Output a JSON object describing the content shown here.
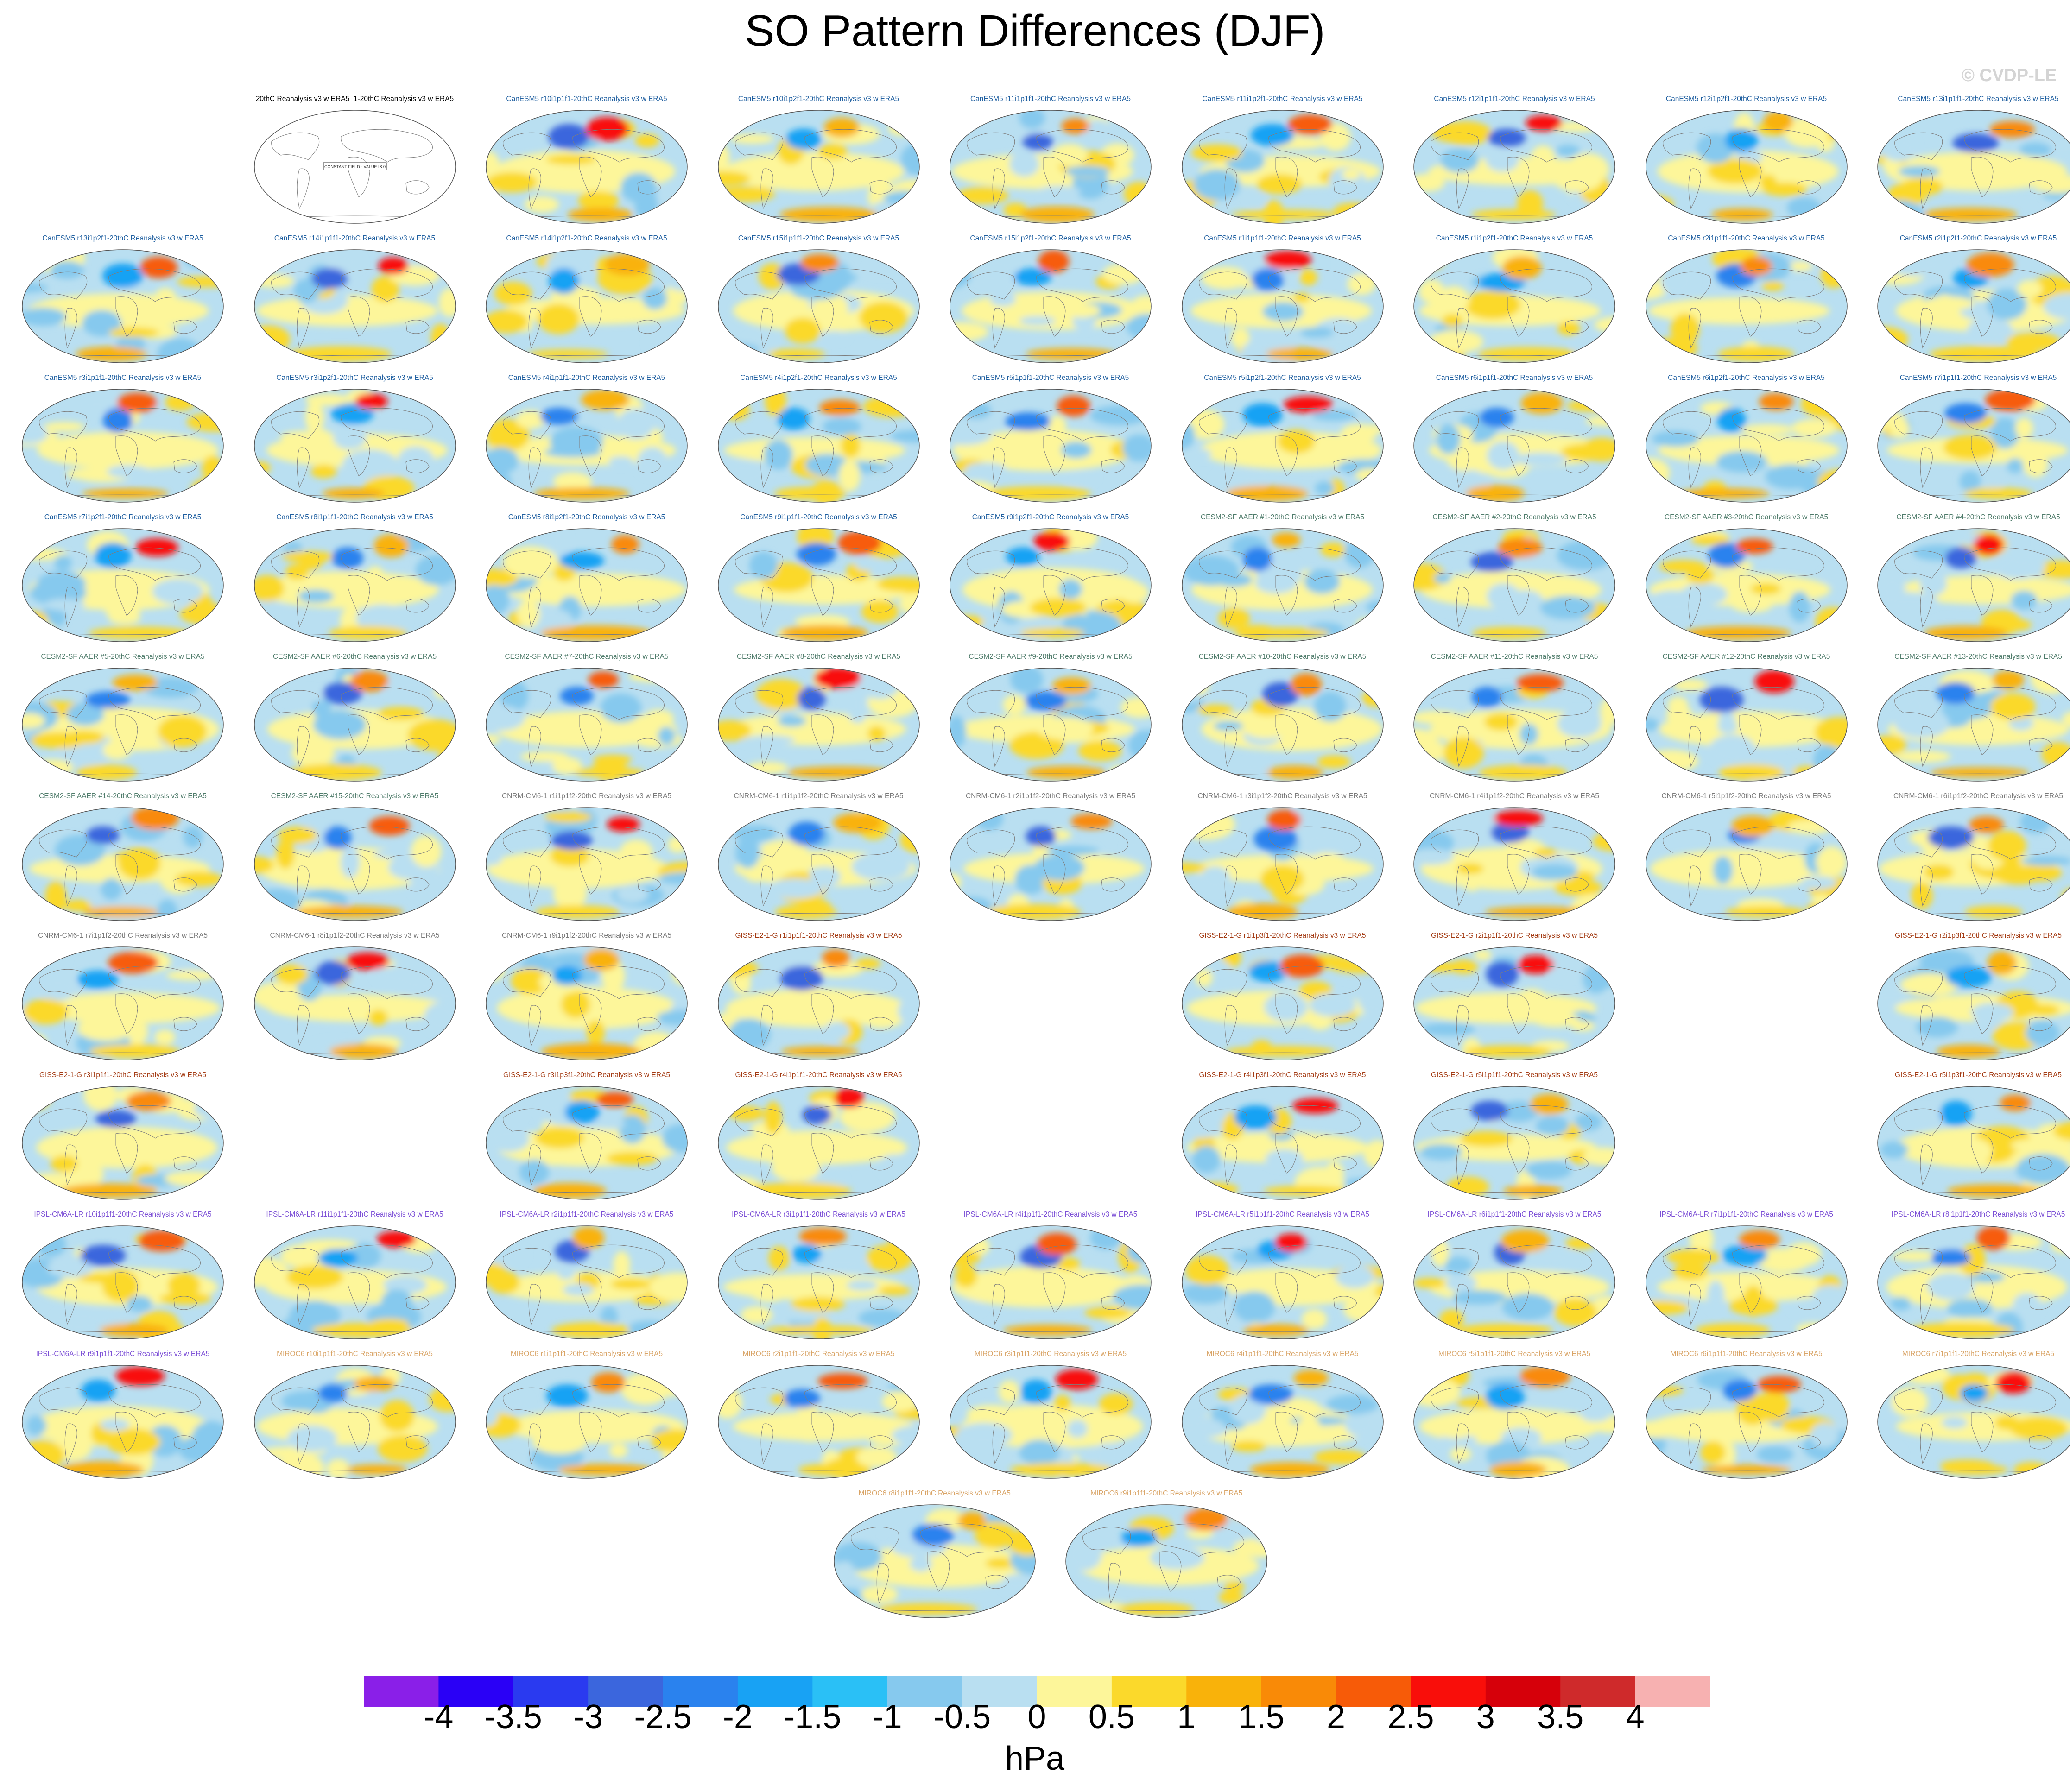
{
  "title": "SO Pattern Differences (DJF)",
  "watermark": "© CVDP-LE",
  "colorbar": {
    "units": "hPa",
    "labels": [
      "-4",
      "-3.5",
      "-3",
      "-2.5",
      "-2",
      "-1.5",
      "-1",
      "-0.5",
      "0",
      "0.5",
      "1",
      "1.5",
      "2",
      "2.5",
      "3",
      "3.5",
      "4"
    ],
    "colors": [
      "#8a1fe8",
      "#2a00f6",
      "#2a3af0",
      "#3b66dd",
      "#2a82ee",
      "#18a2f4",
      "#2ac0f6",
      "#86c9ee",
      "#b9dff1",
      "#fdf69a",
      "#fbd92b",
      "#f9b20a",
      "#f98a07",
      "#f75b08",
      "#f90e0a",
      "#d6000a",
      "#cf2a2b",
      "#f7b1b1"
    ]
  },
  "chart_data": {
    "type": "heatmap",
    "title": "SO Pattern Differences (DJF)",
    "units": "hPa",
    "color_levels": [
      -4,
      -3.5,
      -3,
      -2.5,
      -2,
      -1.5,
      -1,
      -0.5,
      0,
      0.5,
      1,
      1.5,
      2,
      2.5,
      3,
      3.5,
      4
    ],
    "group_colors": {
      "obs": "#000000",
      "CanESM5": "#1f5fa0",
      "CESM2-SF AAER": "#4e7b6a",
      "CNRM-CM6-1": "#7a7a7a",
      "GISS-E2-1-G": "#a33a12",
      "IPSL-CM6A-LR": "#7c4fd6",
      "MIROC6": "#d9a466"
    },
    "panels": [
      {
        "row": 0,
        "col": 1,
        "group": "obs",
        "label": "20thC Reanalysis v3 w ERA5_1-20thC Reanalysis v3 w ERA5",
        "note": "CONSTANT FIELD - VALUE IS 0"
      },
      {
        "row": 0,
        "col": 2,
        "group": "CanESM5",
        "label": "CanESM5 r10i1p1f1-20thC Reanalysis v3 w ERA5"
      },
      {
        "row": 0,
        "col": 3,
        "group": "CanESM5",
        "label": "CanESM5 r10i1p2f1-20thC Reanalysis v3 w ERA5"
      },
      {
        "row": 0,
        "col": 4,
        "group": "CanESM5",
        "label": "CanESM5 r11i1p1f1-20thC Reanalysis v3 w ERA5"
      },
      {
        "row": 0,
        "col": 5,
        "group": "CanESM5",
        "label": "CanESM5 r11i1p2f1-20thC Reanalysis v3 w ERA5"
      },
      {
        "row": 0,
        "col": 6,
        "group": "CanESM5",
        "label": "CanESM5 r12i1p1f1-20thC Reanalysis v3 w ERA5"
      },
      {
        "row": 0,
        "col": 7,
        "group": "CanESM5",
        "label": "CanESM5 r12i1p2f1-20thC Reanalysis v3 w ERA5"
      },
      {
        "row": 0,
        "col": 8,
        "group": "CanESM5",
        "label": "CanESM5 r13i1p1f1-20thC Reanalysis v3 w ERA5"
      },
      {
        "row": 1,
        "col": 0,
        "group": "CanESM5",
        "label": "CanESM5 r13i1p2f1-20thC Reanalysis v3 w ERA5"
      },
      {
        "row": 1,
        "col": 1,
        "group": "CanESM5",
        "label": "CanESM5 r14i1p1f1-20thC Reanalysis v3 w ERA5"
      },
      {
        "row": 1,
        "col": 2,
        "group": "CanESM5",
        "label": "CanESM5 r14i1p2f1-20thC Reanalysis v3 w ERA5"
      },
      {
        "row": 1,
        "col": 3,
        "group": "CanESM5",
        "label": "CanESM5 r15i1p1f1-20thC Reanalysis v3 w ERA5"
      },
      {
        "row": 1,
        "col": 4,
        "group": "CanESM5",
        "label": "CanESM5 r15i1p2f1-20thC Reanalysis v3 w ERA5"
      },
      {
        "row": 1,
        "col": 5,
        "group": "CanESM5",
        "label": "CanESM5 r1i1p1f1-20thC Reanalysis v3 w ERA5"
      },
      {
        "row": 1,
        "col": 6,
        "group": "CanESM5",
        "label": "CanESM5 r1i1p2f1-20thC Reanalysis v3 w ERA5"
      },
      {
        "row": 1,
        "col": 7,
        "group": "CanESM5",
        "label": "CanESM5 r2i1p1f1-20thC Reanalysis v3 w ERA5"
      },
      {
        "row": 1,
        "col": 8,
        "group": "CanESM5",
        "label": "CanESM5 r2i1p2f1-20thC Reanalysis v3 w ERA5"
      },
      {
        "row": 2,
        "col": 0,
        "group": "CanESM5",
        "label": "CanESM5 r3i1p1f1-20thC Reanalysis v3 w ERA5"
      },
      {
        "row": 2,
        "col": 1,
        "group": "CanESM5",
        "label": "CanESM5 r3i1p2f1-20thC Reanalysis v3 w ERA5"
      },
      {
        "row": 2,
        "col": 2,
        "group": "CanESM5",
        "label": "CanESM5 r4i1p1f1-20thC Reanalysis v3 w ERA5"
      },
      {
        "row": 2,
        "col": 3,
        "group": "CanESM5",
        "label": "CanESM5 r4i1p2f1-20thC Reanalysis v3 w ERA5"
      },
      {
        "row": 2,
        "col": 4,
        "group": "CanESM5",
        "label": "CanESM5 r5i1p1f1-20thC Reanalysis v3 w ERA5"
      },
      {
        "row": 2,
        "col": 5,
        "group": "CanESM5",
        "label": "CanESM5 r5i1p2f1-20thC Reanalysis v3 w ERA5"
      },
      {
        "row": 2,
        "col": 6,
        "group": "CanESM5",
        "label": "CanESM5 r6i1p1f1-20thC Reanalysis v3 w ERA5"
      },
      {
        "row": 2,
        "col": 7,
        "group": "CanESM5",
        "label": "CanESM5 r6i1p2f1-20thC Reanalysis v3 w ERA5"
      },
      {
        "row": 2,
        "col": 8,
        "group": "CanESM5",
        "label": "CanESM5 r7i1p1f1-20thC Reanalysis v3 w ERA5"
      },
      {
        "row": 3,
        "col": 0,
        "group": "CanESM5",
        "label": "CanESM5 r7i1p2f1-20thC Reanalysis v3 w ERA5"
      },
      {
        "row": 3,
        "col": 1,
        "group": "CanESM5",
        "label": "CanESM5 r8i1p1f1-20thC Reanalysis v3 w ERA5"
      },
      {
        "row": 3,
        "col": 2,
        "group": "CanESM5",
        "label": "CanESM5 r8i1p2f1-20thC Reanalysis v3 w ERA5"
      },
      {
        "row": 3,
        "col": 3,
        "group": "CanESM5",
        "label": "CanESM5 r9i1p1f1-20thC Reanalysis v3 w ERA5"
      },
      {
        "row": 3,
        "col": 4,
        "group": "CanESM5",
        "label": "CanESM5 r9i1p2f1-20thC Reanalysis v3 w ERA5"
      },
      {
        "row": 3,
        "col": 5,
        "group": "CESM2-SF AAER",
        "label": "CESM2-SF AAER #1-20thC Reanalysis v3 w ERA5"
      },
      {
        "row": 3,
        "col": 6,
        "group": "CESM2-SF AAER",
        "label": "CESM2-SF AAER #2-20thC Reanalysis v3 w ERA5"
      },
      {
        "row": 3,
        "col": 7,
        "group": "CESM2-SF AAER",
        "label": "CESM2-SF AAER #3-20thC Reanalysis v3 w ERA5"
      },
      {
        "row": 3,
        "col": 8,
        "group": "CESM2-SF AAER",
        "label": "CESM2-SF AAER #4-20thC Reanalysis v3 w ERA5"
      },
      {
        "row": 4,
        "col": 0,
        "group": "CESM2-SF AAER",
        "label": "CESM2-SF AAER #5-20thC Reanalysis v3 w ERA5"
      },
      {
        "row": 4,
        "col": 1,
        "group": "CESM2-SF AAER",
        "label": "CESM2-SF AAER #6-20thC Reanalysis v3 w ERA5"
      },
      {
        "row": 4,
        "col": 2,
        "group": "CESM2-SF AAER",
        "label": "CESM2-SF AAER #7-20thC Reanalysis v3 w ERA5"
      },
      {
        "row": 4,
        "col": 3,
        "group": "CESM2-SF AAER",
        "label": "CESM2-SF AAER #8-20thC Reanalysis v3 w ERA5"
      },
      {
        "row": 4,
        "col": 4,
        "group": "CESM2-SF AAER",
        "label": "CESM2-SF AAER #9-20thC Reanalysis v3 w ERA5"
      },
      {
        "row": 4,
        "col": 5,
        "group": "CESM2-SF AAER",
        "label": "CESM2-SF AAER #10-20thC Reanalysis v3 w ERA5"
      },
      {
        "row": 4,
        "col": 6,
        "group": "CESM2-SF AAER",
        "label": "CESM2-SF AAER #11-20thC Reanalysis v3 w ERA5"
      },
      {
        "row": 4,
        "col": 7,
        "group": "CESM2-SF AAER",
        "label": "CESM2-SF AAER #12-20thC Reanalysis v3 w ERA5"
      },
      {
        "row": 4,
        "col": 8,
        "group": "CESM2-SF AAER",
        "label": "CESM2-SF AAER #13-20thC Reanalysis v3 w ERA5"
      },
      {
        "row": 5,
        "col": 0,
        "group": "CESM2-SF AAER",
        "label": "CESM2-SF AAER #14-20thC Reanalysis v3 w ERA5"
      },
      {
        "row": 5,
        "col": 1,
        "group": "CESM2-SF AAER",
        "label": "CESM2-SF AAER #15-20thC Reanalysis v3 w ERA5"
      },
      {
        "row": 5,
        "col": 2,
        "group": "CNRM-CM6-1",
        "label": "CNRM-CM6-1 r1i1p1f2-20thC Reanalysis v3 w ERA5"
      },
      {
        "row": 5,
        "col": 3,
        "group": "CNRM-CM6-1",
        "label": "CNRM-CM6-1 r1i1p1f2-20thC Reanalysis v3 w ERA5"
      },
      {
        "row": 5,
        "col": 4,
        "group": "CNRM-CM6-1",
        "label": "CNRM-CM6-1 r2i1p1f2-20thC Reanalysis v3 w ERA5"
      },
      {
        "row": 5,
        "col": 5,
        "group": "CNRM-CM6-1",
        "label": "CNRM-CM6-1 r3i1p1f2-20thC Reanalysis v3 w ERA5"
      },
      {
        "row": 5,
        "col": 6,
        "group": "CNRM-CM6-1",
        "label": "CNRM-CM6-1 r4i1p1f2-20thC Reanalysis v3 w ERA5"
      },
      {
        "row": 5,
        "col": 7,
        "group": "CNRM-CM6-1",
        "label": "CNRM-CM6-1 r5i1p1f2-20thC Reanalysis v3 w ERA5"
      },
      {
        "row": 5,
        "col": 8,
        "group": "CNRM-CM6-1",
        "label": "CNRM-CM6-1 r6i1p1f2-20thC Reanalysis v3 w ERA5"
      },
      {
        "row": 6,
        "col": 0,
        "group": "CNRM-CM6-1",
        "label": "CNRM-CM6-1 r7i1p1f2-20thC Reanalysis v3 w ERA5"
      },
      {
        "row": 6,
        "col": 1,
        "group": "CNRM-CM6-1",
        "label": "CNRM-CM6-1 r8i1p1f2-20thC Reanalysis v3 w ERA5"
      },
      {
        "row": 6,
        "col": 2,
        "group": "CNRM-CM6-1",
        "label": "CNRM-CM6-1 r9i1p1f2-20thC Reanalysis v3 w ERA5"
      },
      {
        "row": 6,
        "col": 3,
        "group": "GISS-E2-1-G",
        "label": "GISS-E2-1-G r1i1p1f1-20thC Reanalysis v3 w ERA5"
      },
      {
        "row": 6,
        "col": 5,
        "group": "GISS-E2-1-G",
        "label": "GISS-E2-1-G r1i1p3f1-20thC Reanalysis v3 w ERA5"
      },
      {
        "row": 6,
        "col": 6,
        "group": "GISS-E2-1-G",
        "label": "GISS-E2-1-G r2i1p1f1-20thC Reanalysis v3 w ERA5"
      },
      {
        "row": 6,
        "col": 8,
        "group": "GISS-E2-1-G",
        "label": "GISS-E2-1-G r2i1p3f1-20thC Reanalysis v3 w ERA5"
      },
      {
        "row": 7,
        "col": 0,
        "group": "GISS-E2-1-G",
        "label": "GISS-E2-1-G r3i1p1f1-20thC Reanalysis v3 w ERA5"
      },
      {
        "row": 7,
        "col": 2,
        "group": "GISS-E2-1-G",
        "label": "GISS-E2-1-G r3i1p3f1-20thC Reanalysis v3 w ERA5"
      },
      {
        "row": 7,
        "col": 3,
        "group": "GISS-E2-1-G",
        "label": "GISS-E2-1-G r4i1p1f1-20thC Reanalysis v3 w ERA5"
      },
      {
        "row": 7,
        "col": 5,
        "group": "GISS-E2-1-G",
        "label": "GISS-E2-1-G r4i1p3f1-20thC Reanalysis v3 w ERA5"
      },
      {
        "row": 7,
        "col": 6,
        "group": "GISS-E2-1-G",
        "label": "GISS-E2-1-G r5i1p1f1-20thC Reanalysis v3 w ERA5"
      },
      {
        "row": 7,
        "col": 8,
        "group": "GISS-E2-1-G",
        "label": "GISS-E2-1-G r5i1p3f1-20thC Reanalysis v3 w ERA5"
      },
      {
        "row": 8,
        "col": 0,
        "group": "IPSL-CM6A-LR",
        "label": "IPSL-CM6A-LR r10i1p1f1-20thC Reanalysis v3 w ERA5"
      },
      {
        "row": 8,
        "col": 1,
        "group": "IPSL-CM6A-LR",
        "label": "IPSL-CM6A-LR r11i1p1f1-20thC Reanalysis v3 w ERA5"
      },
      {
        "row": 8,
        "col": 2,
        "group": "IPSL-CM6A-LR",
        "label": "IPSL-CM6A-LR r2i1p1f1-20thC Reanalysis v3 w ERA5"
      },
      {
        "row": 8,
        "col": 3,
        "group": "IPSL-CM6A-LR",
        "label": "IPSL-CM6A-LR r3i1p1f1-20thC Reanalysis v3 w ERA5"
      },
      {
        "row": 8,
        "col": 4,
        "group": "IPSL-CM6A-LR",
        "label": "IPSL-CM6A-LR r4i1p1f1-20thC Reanalysis v3 w ERA5"
      },
      {
        "row": 8,
        "col": 5,
        "group": "IPSL-CM6A-LR",
        "label": "IPSL-CM6A-LR r5i1p1f1-20thC Reanalysis v3 w ERA5"
      },
      {
        "row": 8,
        "col": 6,
        "group": "IPSL-CM6A-LR",
        "label": "IPSL-CM6A-LR r6i1p1f1-20thC Reanalysis v3 w ERA5"
      },
      {
        "row": 8,
        "col": 7,
        "group": "IPSL-CM6A-LR",
        "label": "IPSL-CM6A-LR r7i1p1f1-20thC Reanalysis v3 w ERA5"
      },
      {
        "row": 8,
        "col": 8,
        "group": "IPSL-CM6A-LR",
        "label": "IPSL-CM6A-LR r8i1p1f1-20thC Reanalysis v3 w ERA5"
      },
      {
        "row": 9,
        "col": 0,
        "group": "IPSL-CM6A-LR",
        "label": "IPSL-CM6A-LR r9i1p1f1-20thC Reanalysis v3 w ERA5"
      },
      {
        "row": 9,
        "col": 1,
        "group": "MIROC6",
        "label": "MIROC6 r10i1p1f1-20thC Reanalysis v3 w ERA5"
      },
      {
        "row": 9,
        "col": 2,
        "group": "MIROC6",
        "label": "MIROC6 r1i1p1f1-20thC Reanalysis v3 w ERA5"
      },
      {
        "row": 9,
        "col": 3,
        "group": "MIROC6",
        "label": "MIROC6 r2i1p1f1-20thC Reanalysis v3 w ERA5"
      },
      {
        "row": 9,
        "col": 4,
        "group": "MIROC6",
        "label": "MIROC6 r3i1p1f1-20thC Reanalysis v3 w ERA5"
      },
      {
        "row": 9,
        "col": 5,
        "group": "MIROC6",
        "label": "MIROC6 r4i1p1f1-20thC Reanalysis v3 w ERA5"
      },
      {
        "row": 9,
        "col": 6,
        "group": "MIROC6",
        "label": "MIROC6 r5i1p1f1-20thC Reanalysis v3 w ERA5"
      },
      {
        "row": 9,
        "col": 7,
        "group": "MIROC6",
        "label": "MIROC6 r6i1p1f1-20thC Reanalysis v3 w ERA5"
      },
      {
        "row": 9,
        "col": 8,
        "group": "MIROC6",
        "label": "MIROC6 r7i1p1f1-20thC Reanalysis v3 w ERA5"
      },
      {
        "row": 10,
        "col": 3.5,
        "group": "MIROC6",
        "label": "MIROC6 r8i1p1f1-20thC Reanalysis v3 w ERA5"
      },
      {
        "row": 10,
        "col": 4.5,
        "group": "MIROC6",
        "label": "MIROC6 r9i1p1f1-20thC Reanalysis v3 w ERA5"
      }
    ]
  }
}
